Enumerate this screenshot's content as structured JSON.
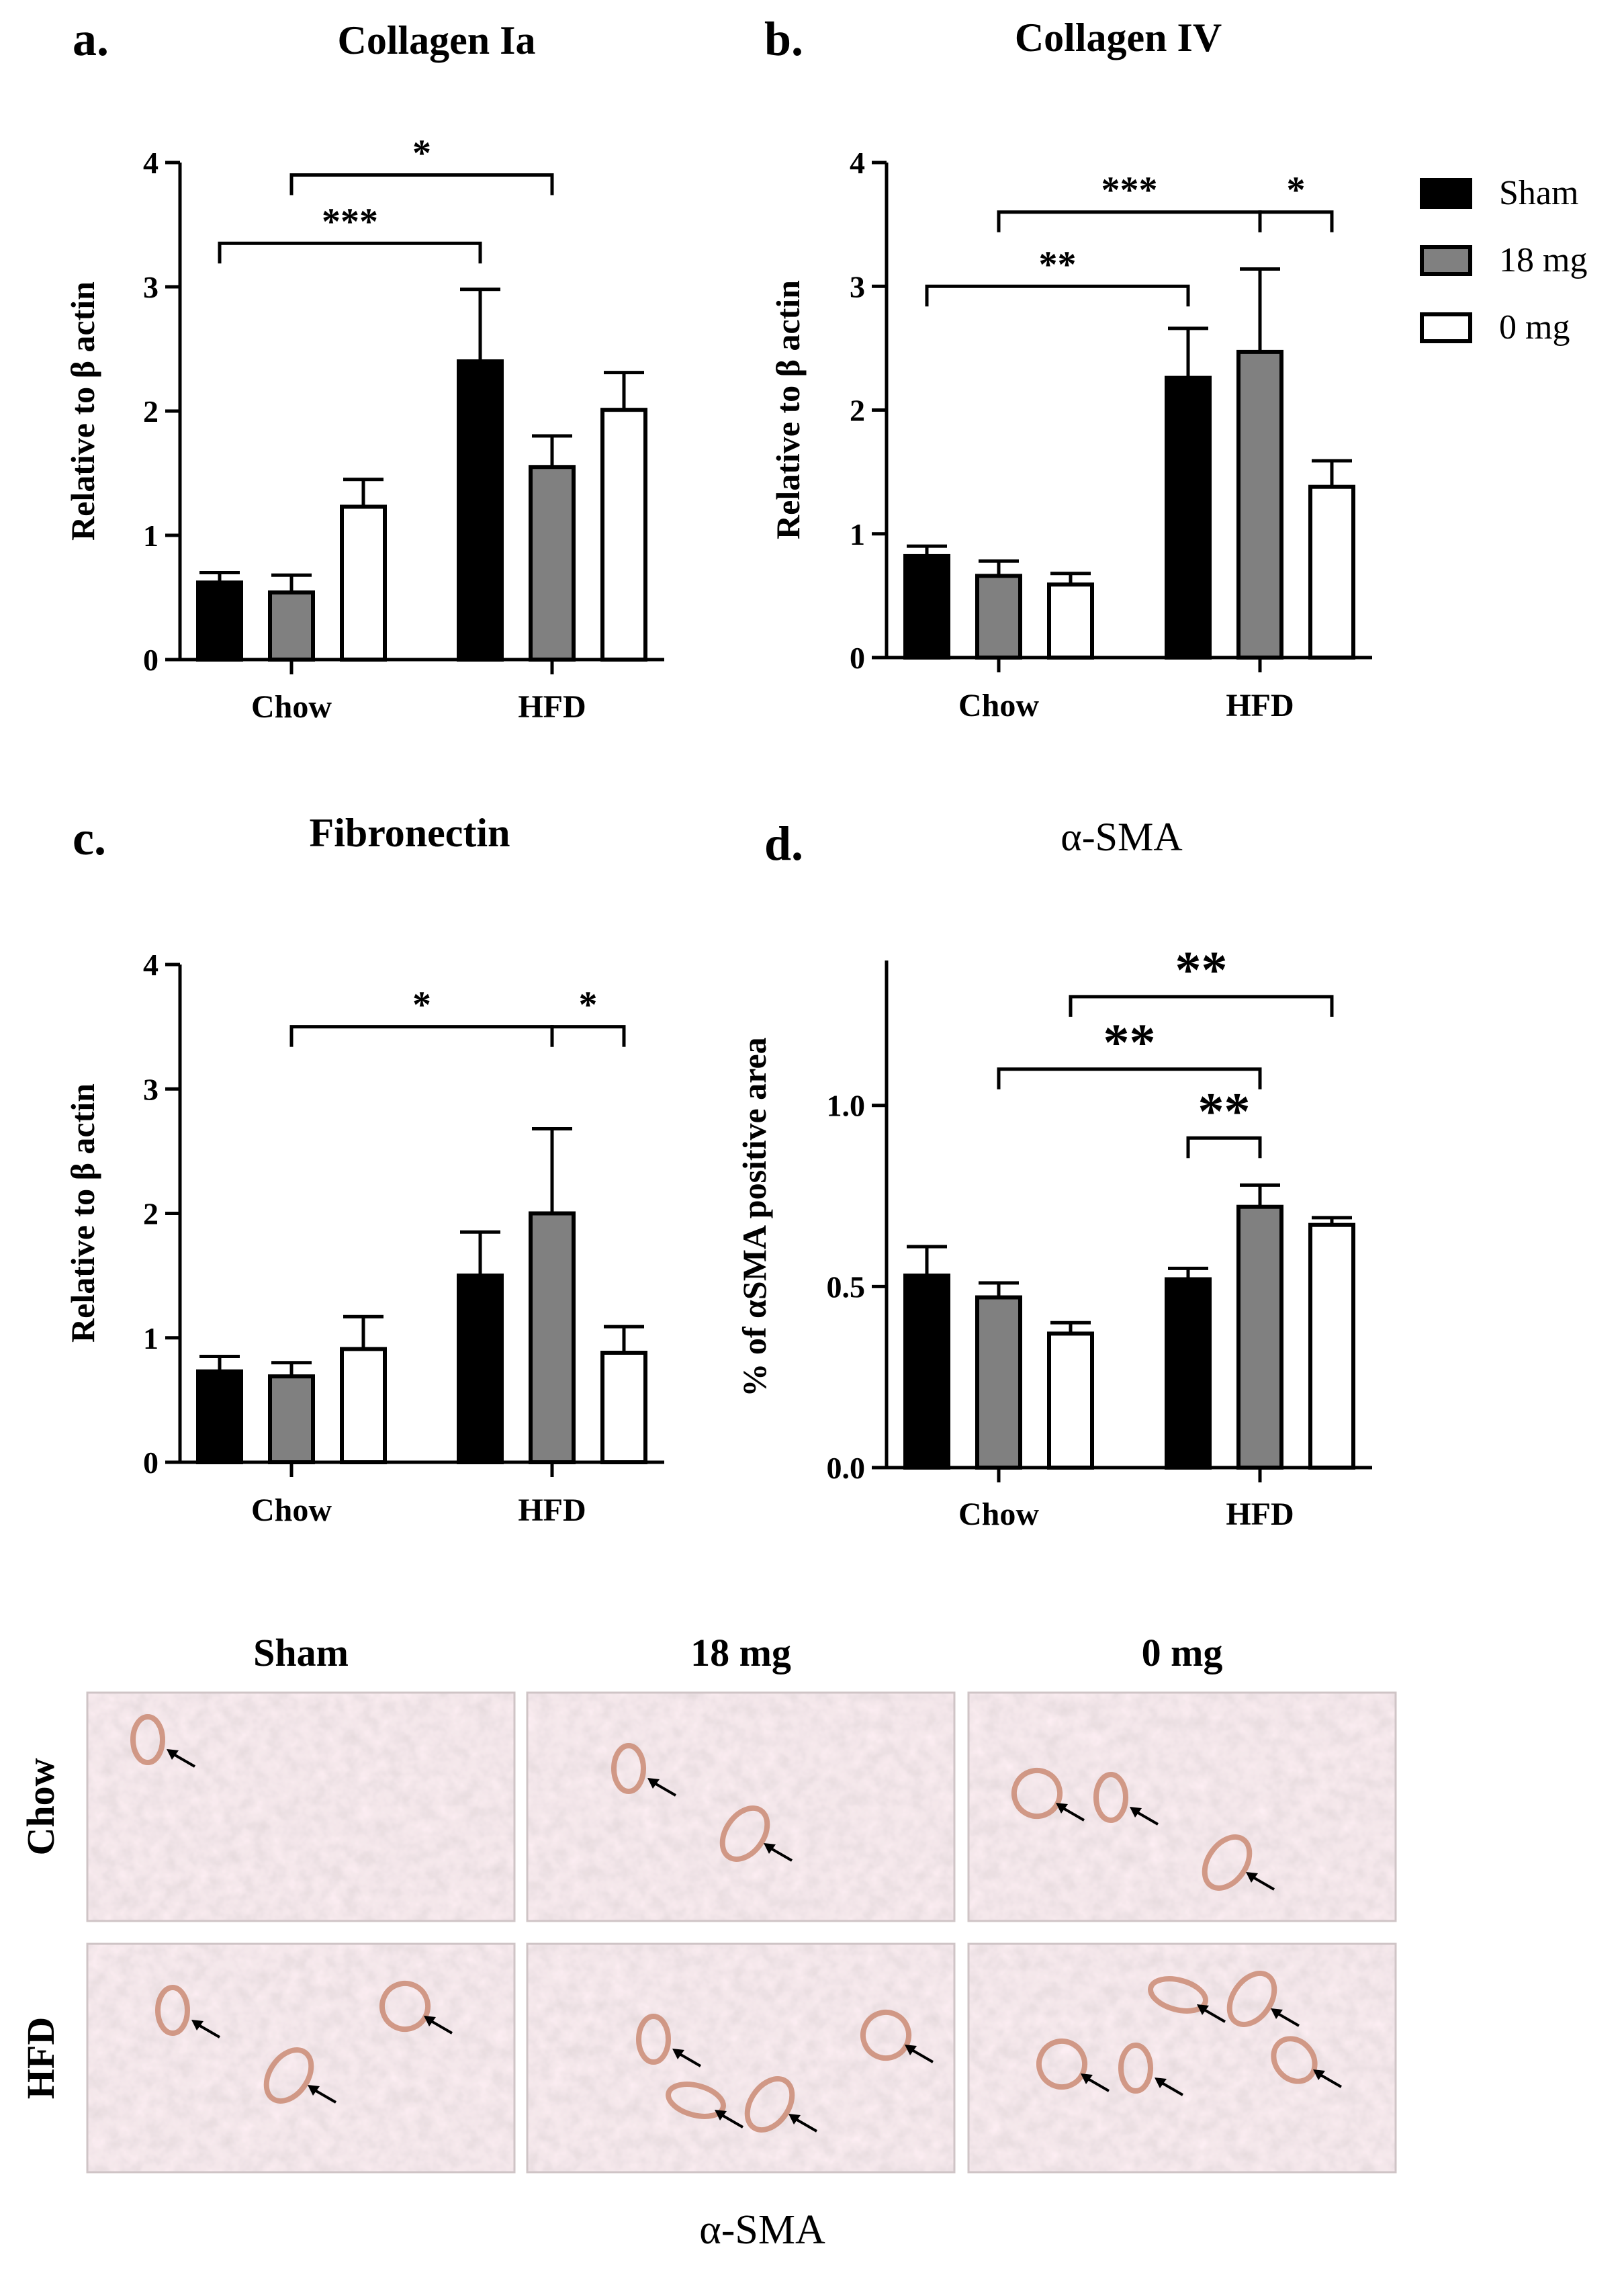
{
  "legend": {
    "items": [
      {
        "name": "Sham",
        "fill": "#000000"
      },
      {
        "name": "18 mg",
        "fill": "#808080"
      },
      {
        "name": "0 mg",
        "fill": "#ffffff"
      }
    ],
    "placement": "right of panel b"
  },
  "chart_data": [
    {
      "panel": "a.",
      "type": "bar",
      "title": "Collagen Ia",
      "ylabel": "Relative to β actin",
      "ylim": [
        0,
        4
      ],
      "yticks": [
        "0",
        "1",
        "2",
        "3",
        "4"
      ],
      "categories": [
        "Chow",
        "HFD"
      ],
      "series": [
        {
          "name": "Sham",
          "values": [
            0.62,
            2.4
          ],
          "errors": [
            0.08,
            0.58
          ]
        },
        {
          "name": "18 mg",
          "values": [
            0.54,
            1.55
          ],
          "errors": [
            0.14,
            0.25
          ]
        },
        {
          "name": "0 mg",
          "values": [
            1.23,
            2.01
          ],
          "errors": [
            0.22,
            0.3
          ]
        }
      ],
      "significance": [
        {
          "from": [
            0,
            0
          ],
          "to": [
            1,
            0
          ],
          "label": "***",
          "y": 3.35
        },
        {
          "from": [
            0,
            1
          ],
          "to": [
            1,
            1
          ],
          "label": "*",
          "y": 3.9
        }
      ]
    },
    {
      "panel": "b.",
      "type": "bar",
      "title": "Collagen IV",
      "ylabel": "Relative to β actin",
      "ylim": [
        0,
        4
      ],
      "yticks": [
        "0",
        "1",
        "2",
        "3",
        "4"
      ],
      "categories": [
        "Chow",
        "HFD"
      ],
      "series": [
        {
          "name": "Sham",
          "values": [
            0.82,
            2.26
          ],
          "errors": [
            0.08,
            0.4
          ]
        },
        {
          "name": "18 mg",
          "values": [
            0.66,
            2.47
          ],
          "errors": [
            0.12,
            0.67
          ]
        },
        {
          "name": "0 mg",
          "values": [
            0.59,
            1.38
          ],
          "errors": [
            0.09,
            0.21
          ]
        }
      ],
      "significance": [
        {
          "from": [
            0,
            0
          ],
          "to": [
            1,
            0
          ],
          "label": "**",
          "y": 3.0
        },
        {
          "from": [
            0,
            1
          ],
          "to": [
            1,
            1
          ],
          "label": "***",
          "y": 3.6
        },
        {
          "from": [
            1,
            1
          ],
          "to": [
            1,
            2
          ],
          "label": "*",
          "y": 3.6
        }
      ]
    },
    {
      "panel": "c.",
      "type": "bar",
      "title": "Fibronectin",
      "ylabel": "Relative to β actin",
      "ylim": [
        0,
        4
      ],
      "yticks": [
        "0",
        "1",
        "2",
        "3",
        "4"
      ],
      "categories": [
        "Chow",
        "HFD"
      ],
      "series": [
        {
          "name": "Sham",
          "values": [
            0.73,
            1.5
          ],
          "errors": [
            0.12,
            0.35
          ]
        },
        {
          "name": "18 mg",
          "values": [
            0.69,
            2.0
          ],
          "errors": [
            0.11,
            0.68
          ]
        },
        {
          "name": "0 mg",
          "values": [
            0.91,
            0.88
          ],
          "errors": [
            0.26,
            0.21
          ]
        }
      ],
      "significance": [
        {
          "from": [
            0,
            1
          ],
          "to": [
            1,
            1
          ],
          "label": "*",
          "y": 3.5
        },
        {
          "from": [
            1,
            1
          ],
          "to": [
            1,
            2
          ],
          "label": "*",
          "y": 3.5
        }
      ]
    },
    {
      "panel": "d.",
      "type": "bar",
      "title": "α-SMA",
      "ylabel": "% of αSMA positive area",
      "ylim": [
        0,
        1.4
      ],
      "yticks": [
        "0.0",
        "0.5",
        "1.0"
      ],
      "categories": [
        "Chow",
        "HFD"
      ],
      "series": [
        {
          "name": "Sham",
          "values": [
            0.53,
            0.52
          ],
          "errors": [
            0.08,
            0.03
          ]
        },
        {
          "name": "18 mg",
          "values": [
            0.47,
            0.72
          ],
          "errors": [
            0.04,
            0.06
          ]
        },
        {
          "name": "0 mg",
          "values": [
            0.37,
            0.67
          ],
          "errors": [
            0.03,
            0.02
          ]
        }
      ],
      "significance": [
        {
          "from": [
            1,
            0
          ],
          "to": [
            1,
            1
          ],
          "label": "**",
          "y": 0.91
        },
        {
          "from": [
            0,
            1
          ],
          "to": [
            1,
            1
          ],
          "label": "**",
          "y": 1.1
        },
        {
          "from": [
            0,
            2
          ],
          "to": [
            1,
            2
          ],
          "label": "**",
          "y": 1.3
        }
      ]
    }
  ],
  "micrographs": {
    "column_labels": [
      "Sham",
      "18 mg",
      "0 mg"
    ],
    "row_labels": [
      "Chow",
      "HFD"
    ],
    "caption": "α-SMA"
  }
}
